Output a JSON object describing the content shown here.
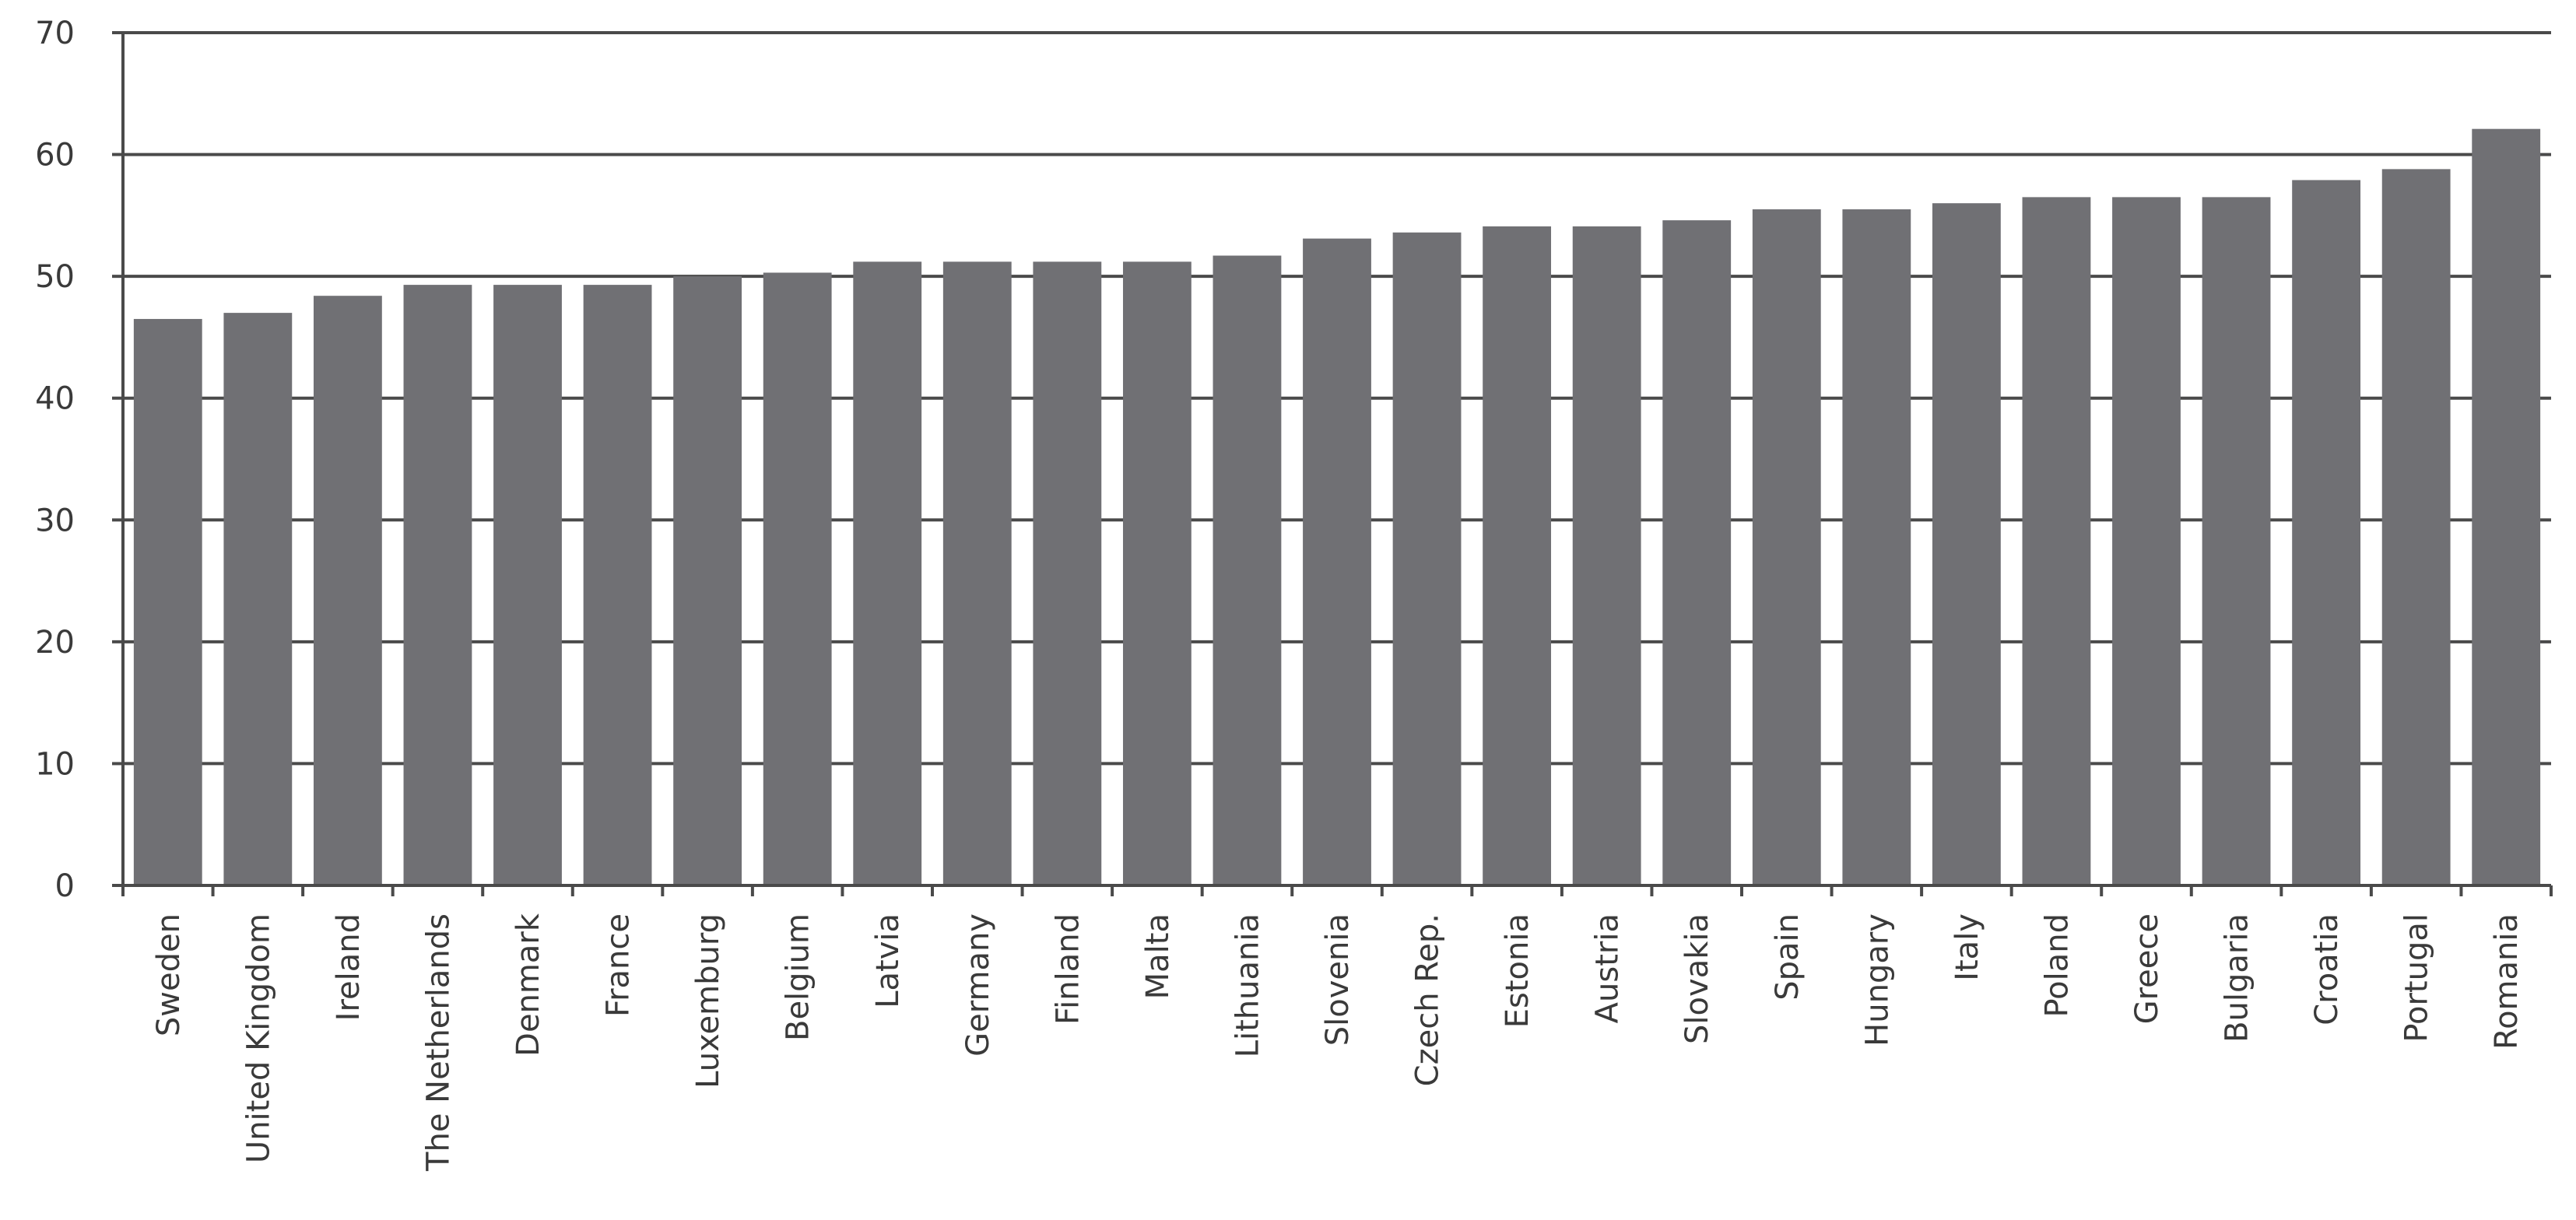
{
  "chart_data": {
    "type": "bar",
    "categories": [
      "Sweden",
      "United Kingdom",
      "Ireland",
      "The Netherlands",
      "Denmark",
      "France",
      "Luxemburg",
      "Belgium",
      "Latvia",
      "Germany",
      "Finland",
      "Malta",
      "Lithuania",
      "Slovenia",
      "Czech Rep.",
      "Estonia",
      "Austria",
      "Slovakia",
      "Spain",
      "Hungary",
      "Italy",
      "Poland",
      "Greece",
      "Bulgaria",
      "Croatia",
      "Portugal",
      "Romania"
    ],
    "values": [
      46.5,
      47,
      48.4,
      49.3,
      49.3,
      49.3,
      50,
      50.3,
      51.2,
      51.2,
      51.2,
      51.2,
      51.7,
      53.1,
      53.6,
      54.1,
      54.1,
      54.6,
      55.5,
      55.5,
      56,
      56.5,
      56.5,
      56.5,
      57.9,
      58.8,
      62.1
    ],
    "ylim": [
      0,
      70
    ],
    "yticks": [
      0,
      10,
      20,
      30,
      40,
      50,
      60,
      70
    ],
    "grid": true,
    "bar_color": "#707074",
    "title": "",
    "xlabel": "",
    "ylabel": ""
  }
}
